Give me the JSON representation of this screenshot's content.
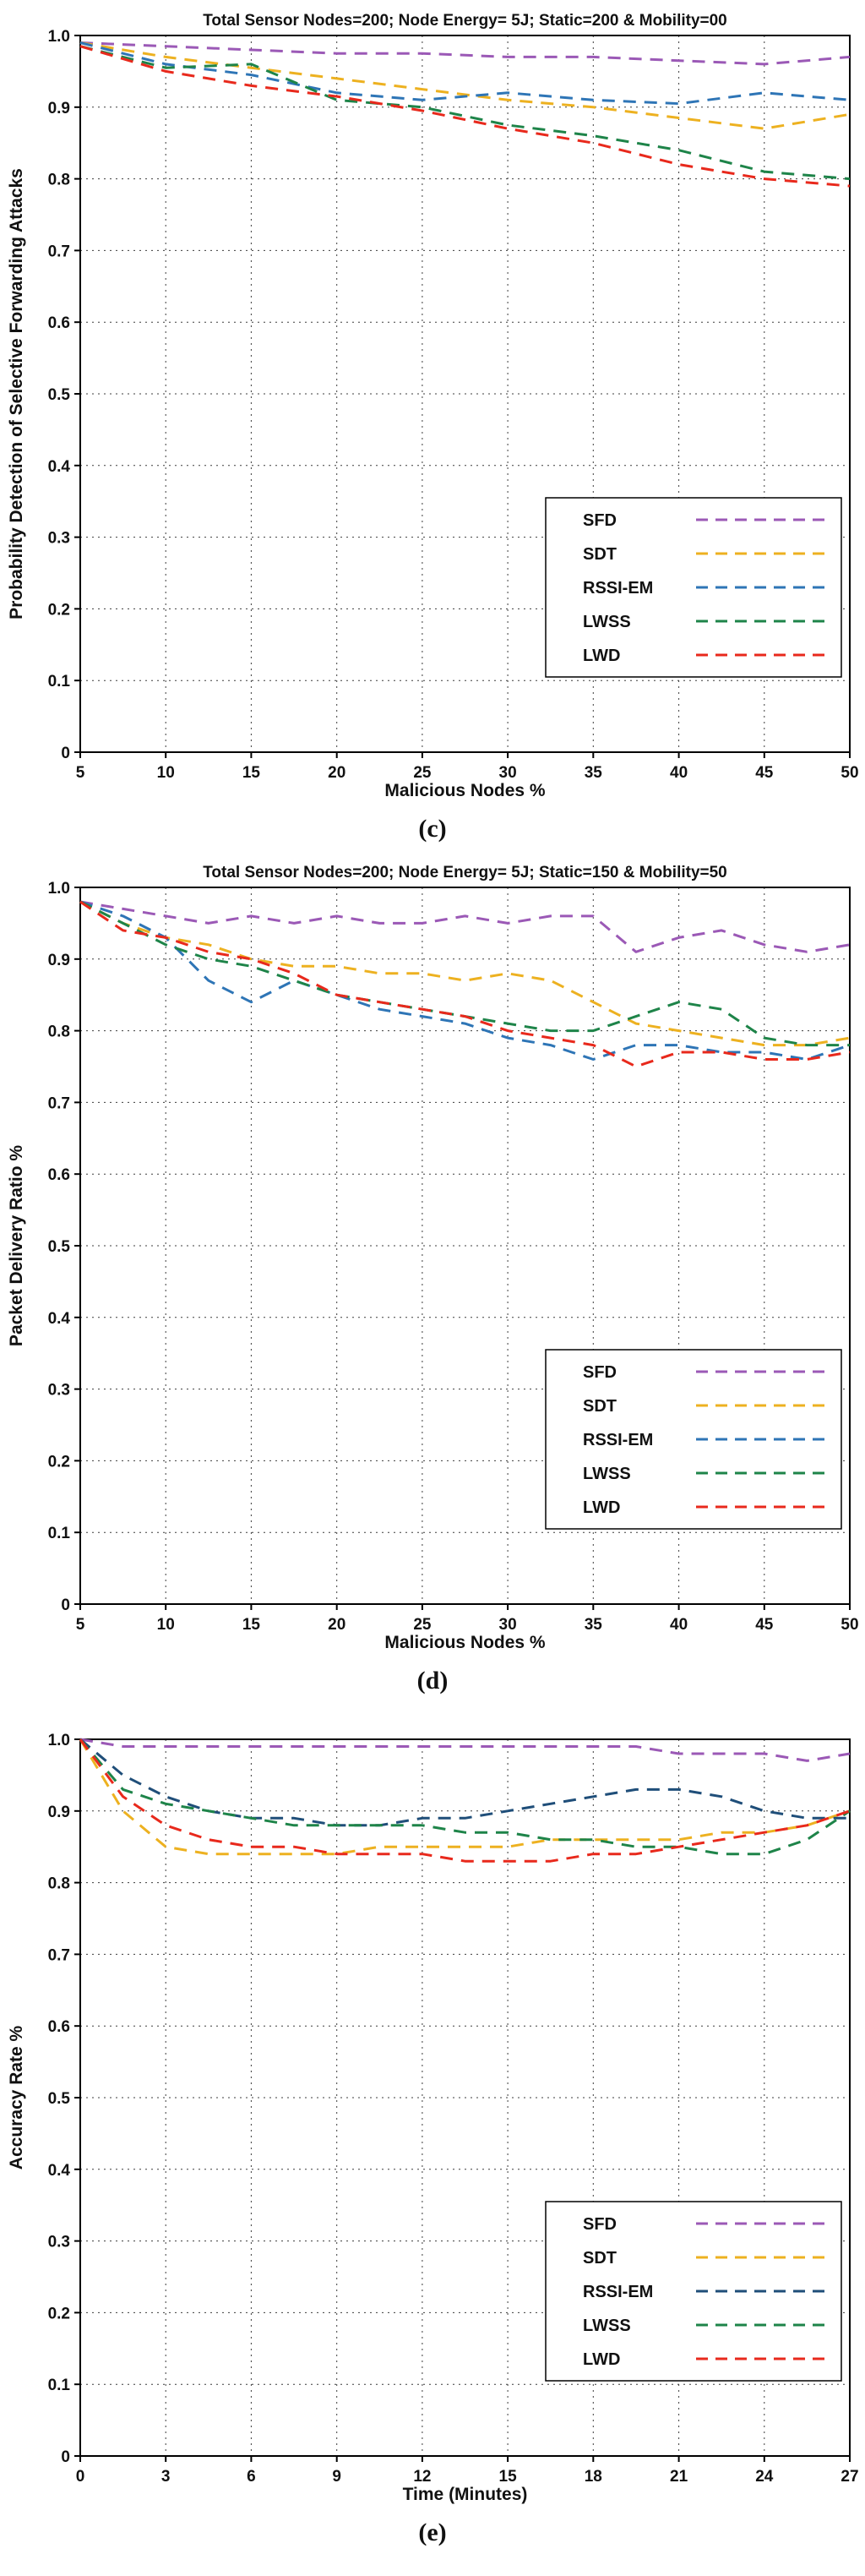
{
  "page": {
    "background": "#ffffff"
  },
  "chart_data": [
    {
      "id": "c",
      "caption": "(c)",
      "type": "line",
      "title": "Total Sensor Nodes=200; Node Energy= 5J; Static=200 & Mobility=00",
      "xlabel": "Malicious Nodes %",
      "ylabel": "Probability Detection of Selective Forwarding Attacks",
      "xlim": [
        5,
        50
      ],
      "ylim": [
        0,
        1.0
      ],
      "xticks": [
        5,
        10,
        15,
        20,
        25,
        30,
        35,
        40,
        45,
        50
      ],
      "xtick_labels": [
        "5",
        "10",
        "15",
        "20",
        "25",
        "30",
        "35",
        "40",
        "45",
        "50"
      ],
      "yticks": [
        0,
        0.1,
        0.2,
        0.3,
        0.4,
        0.5,
        0.6,
        0.7,
        0.8,
        0.9,
        1.0
      ],
      "ytick_labels": [
        "0",
        "0.1",
        "0.2",
        "0.3",
        "0.4",
        "0.5",
        "0.6",
        "0.7",
        "0.8",
        "0.9",
        "1.0"
      ],
      "grid": true,
      "legend_position": "lower-right",
      "x": [
        5,
        10,
        15,
        20,
        25,
        30,
        35,
        40,
        45,
        50
      ],
      "series": [
        {
          "name": "SFD",
          "color": "#9b59b6",
          "style": "dashed",
          "values": [
            0.99,
            0.985,
            0.98,
            0.975,
            0.975,
            0.97,
            0.97,
            0.965,
            0.96,
            0.97
          ]
        },
        {
          "name": "SDT",
          "color": "#edb120",
          "style": "dashed",
          "values": [
            0.99,
            0.97,
            0.955,
            0.94,
            0.925,
            0.91,
            0.9,
            0.885,
            0.87,
            0.89
          ]
        },
        {
          "name": "RSSI-EM",
          "color": "#2e75b6",
          "style": "dashed",
          "values": [
            0.99,
            0.96,
            0.945,
            0.92,
            0.91,
            0.92,
            0.91,
            0.905,
            0.92,
            0.91
          ]
        },
        {
          "name": "LWSS",
          "color": "#1e8449",
          "style": "dashed",
          "values": [
            0.985,
            0.955,
            0.96,
            0.91,
            0.9,
            0.875,
            0.86,
            0.84,
            0.81,
            0.8
          ]
        },
        {
          "name": "LWD",
          "color": "#e8291c",
          "style": "dashed",
          "values": [
            0.985,
            0.95,
            0.93,
            0.915,
            0.895,
            0.87,
            0.85,
            0.82,
            0.8,
            0.79
          ]
        }
      ]
    },
    {
      "id": "d",
      "caption": "(d)",
      "type": "line",
      "title": "Total Sensor Nodes=200; Node Energy= 5J; Static=150 & Mobility=50",
      "xlabel": "Malicious Nodes %",
      "ylabel": "Packet Delivery Ratio %",
      "xlim": [
        5,
        50
      ],
      "ylim": [
        0,
        1.0
      ],
      "xticks": [
        5,
        10,
        15,
        20,
        25,
        30,
        35,
        40,
        45,
        50
      ],
      "xtick_labels": [
        "5",
        "10",
        "15",
        "20",
        "25",
        "30",
        "35",
        "40",
        "45",
        "50"
      ],
      "yticks": [
        0,
        0.1,
        0.2,
        0.3,
        0.4,
        0.5,
        0.6,
        0.7,
        0.8,
        0.9,
        1.0
      ],
      "ytick_labels": [
        "0",
        "0.1",
        "0.2",
        "0.3",
        "0.4",
        "0.5",
        "0.6",
        "0.7",
        "0.8",
        "0.9",
        "1.0"
      ],
      "grid": true,
      "legend_position": "lower-right",
      "x": [
        5,
        7.5,
        10,
        12.5,
        15,
        17.5,
        20,
        22.5,
        25,
        27.5,
        30,
        32.5,
        35,
        37.5,
        40,
        42.5,
        45,
        47.5,
        50
      ],
      "series": [
        {
          "name": "SFD",
          "color": "#9b59b6",
          "style": "dashed",
          "values": [
            0.98,
            0.97,
            0.96,
            0.95,
            0.96,
            0.95,
            0.96,
            0.95,
            0.95,
            0.96,
            0.95,
            0.96,
            0.96,
            0.91,
            0.93,
            0.94,
            0.92,
            0.91,
            0.92
          ]
        },
        {
          "name": "SDT",
          "color": "#edb120",
          "style": "dashed",
          "values": [
            0.98,
            0.95,
            0.93,
            0.92,
            0.9,
            0.89,
            0.89,
            0.88,
            0.88,
            0.87,
            0.88,
            0.87,
            0.84,
            0.81,
            0.8,
            0.79,
            0.78,
            0.78,
            0.79
          ]
        },
        {
          "name": "RSSI-EM",
          "color": "#2e75b6",
          "style": "dashed",
          "values": [
            0.98,
            0.96,
            0.93,
            0.87,
            0.84,
            0.87,
            0.85,
            0.83,
            0.82,
            0.81,
            0.79,
            0.78,
            0.76,
            0.78,
            0.78,
            0.77,
            0.77,
            0.76,
            0.78
          ]
        },
        {
          "name": "LWSS",
          "color": "#1e8449",
          "style": "dashed",
          "values": [
            0.98,
            0.95,
            0.92,
            0.9,
            0.89,
            0.87,
            0.85,
            0.84,
            0.83,
            0.82,
            0.81,
            0.8,
            0.8,
            0.82,
            0.84,
            0.83,
            0.79,
            0.78,
            0.78
          ]
        },
        {
          "name": "LWD",
          "color": "#e8291c",
          "style": "dashed",
          "values": [
            0.98,
            0.94,
            0.93,
            0.91,
            0.9,
            0.88,
            0.85,
            0.84,
            0.83,
            0.82,
            0.8,
            0.79,
            0.78,
            0.75,
            0.77,
            0.77,
            0.76,
            0.76,
            0.77
          ]
        }
      ]
    },
    {
      "id": "e",
      "caption": "(e)",
      "type": "line",
      "title": "",
      "xlabel": "Time (Minutes)",
      "ylabel": "Accuracy Rate %",
      "xlim": [
        0,
        27
      ],
      "ylim": [
        0,
        1.0
      ],
      "xticks": [
        0,
        3,
        6,
        9,
        12,
        15,
        18,
        21,
        24,
        27
      ],
      "xtick_labels": [
        "0",
        "3",
        "6",
        "9",
        "12",
        "15",
        "18",
        "21",
        "24",
        "27"
      ],
      "yticks": [
        0,
        0.1,
        0.2,
        0.3,
        0.4,
        0.5,
        0.6,
        0.7,
        0.8,
        0.9,
        1.0
      ],
      "ytick_labels": [
        "0",
        "0.1",
        "0.2",
        "0.3",
        "0.4",
        "0.5",
        "0.6",
        "0.7",
        "0.8",
        "0.9",
        "1.0"
      ],
      "grid": true,
      "legend_position": "lower-right",
      "x": [
        0,
        1.5,
        3,
        4.5,
        6,
        7.5,
        9,
        10.5,
        12,
        13.5,
        15,
        16.5,
        18,
        19.5,
        21,
        22.5,
        24,
        25.5,
        27
      ],
      "series": [
        {
          "name": "SFD",
          "color": "#9b59b6",
          "style": "dashed",
          "values": [
            1.0,
            0.99,
            0.99,
            0.99,
            0.99,
            0.99,
            0.99,
            0.99,
            0.99,
            0.99,
            0.99,
            0.99,
            0.99,
            0.99,
            0.98,
            0.98,
            0.98,
            0.97,
            0.98
          ]
        },
        {
          "name": "SDT",
          "color": "#edb120",
          "style": "dashed",
          "values": [
            1.0,
            0.9,
            0.85,
            0.84,
            0.84,
            0.84,
            0.84,
            0.85,
            0.85,
            0.85,
            0.85,
            0.86,
            0.86,
            0.86,
            0.86,
            0.87,
            0.87,
            0.88,
            0.9
          ]
        },
        {
          "name": "RSSI-EM",
          "color": "#1f4e79",
          "style": "dashed",
          "values": [
            1.0,
            0.95,
            0.92,
            0.9,
            0.89,
            0.89,
            0.88,
            0.88,
            0.89,
            0.89,
            0.9,
            0.91,
            0.92,
            0.93,
            0.93,
            0.92,
            0.9,
            0.89,
            0.89
          ]
        },
        {
          "name": "LWSS",
          "color": "#1e8449",
          "style": "dashed",
          "values": [
            1.0,
            0.93,
            0.91,
            0.9,
            0.89,
            0.88,
            0.88,
            0.88,
            0.88,
            0.87,
            0.87,
            0.86,
            0.86,
            0.85,
            0.85,
            0.84,
            0.84,
            0.86,
            0.9
          ]
        },
        {
          "name": "LWD",
          "color": "#e8291c",
          "style": "dashed",
          "values": [
            1.0,
            0.92,
            0.88,
            0.86,
            0.85,
            0.85,
            0.84,
            0.84,
            0.84,
            0.83,
            0.83,
            0.83,
            0.84,
            0.84,
            0.85,
            0.86,
            0.87,
            0.88,
            0.9
          ]
        }
      ]
    }
  ]
}
